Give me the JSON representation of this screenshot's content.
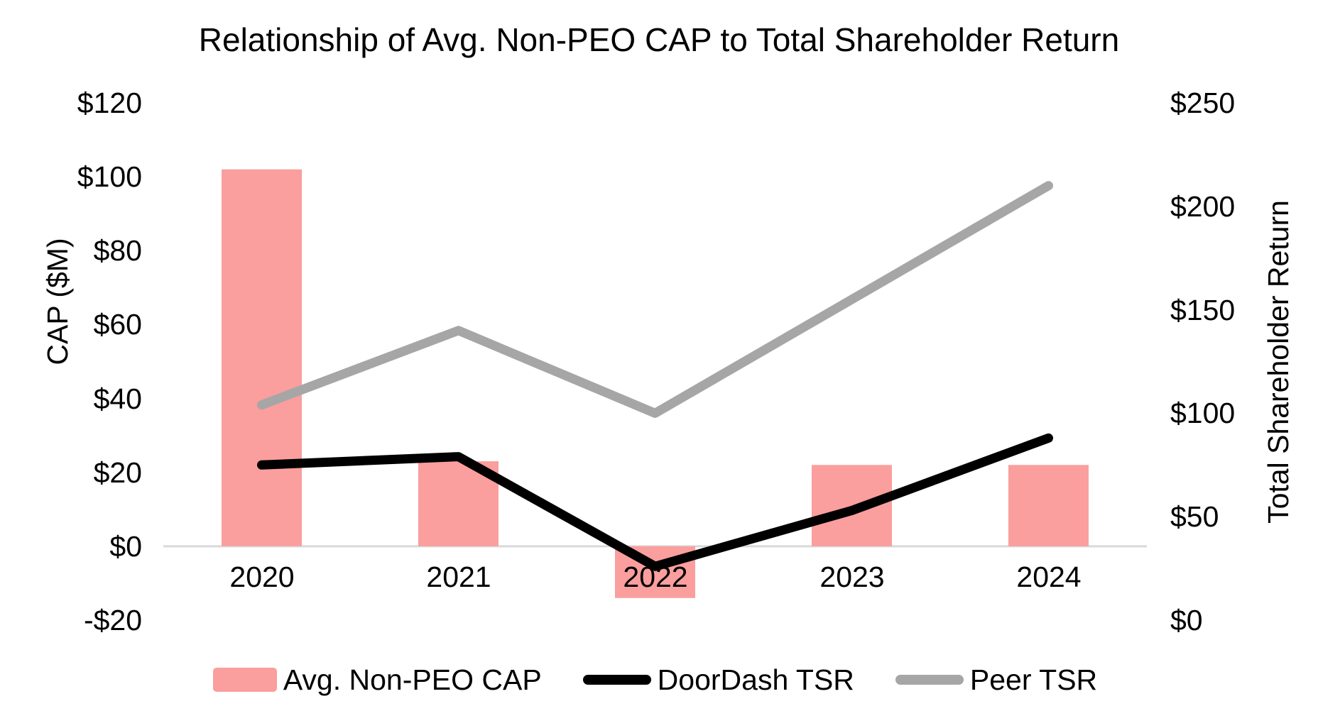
{
  "chart_data": {
    "type": "bar",
    "subtype": "combo-bar-line-dual-axis",
    "title": "Relationship of Avg. Non-PEO CAP to Total Shareholder Return",
    "categories": [
      "2020",
      "2021",
      "2022",
      "2023",
      "2024"
    ],
    "series": [
      {
        "name": "Avg. Non-PEO CAP",
        "type": "bar",
        "axis": "left",
        "color": "#FA9E9E",
        "values": [
          102,
          23,
          -14,
          22,
          22
        ]
      },
      {
        "name": "DoorDash TSR",
        "type": "line",
        "axis": "right",
        "color": "#000000",
        "values": [
          75,
          79,
          26,
          53,
          88
        ]
      },
      {
        "name": "Peer TSR",
        "type": "line",
        "axis": "right",
        "color": "#A6A6A6",
        "values": [
          104,
          140,
          100,
          155,
          210
        ]
      }
    ],
    "left_axis": {
      "title": "CAP ($M)",
      "min": -20,
      "max": 120,
      "step": 20,
      "tick_labels": [
        "$120",
        "$100",
        "$80",
        "$60",
        "$40",
        "$20",
        "$0",
        "-$20"
      ]
    },
    "right_axis": {
      "title": "Total Shareholder Return",
      "min": 0,
      "max": 250,
      "step": 50,
      "tick_labels": [
        "$250",
        "$200",
        "$150",
        "$100",
        "$50",
        "$0"
      ]
    },
    "gridlines": "none",
    "zero_line_color": "#D9D9D9",
    "background_color": "#FFFFFF",
    "legend_position": "bottom"
  }
}
